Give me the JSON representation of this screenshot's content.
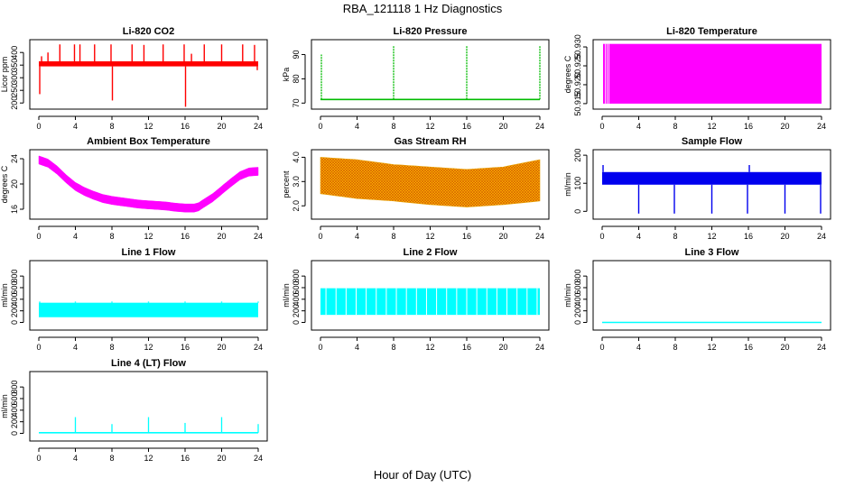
{
  "figure": {
    "title": "RBA_121118  1 Hz Diagnostics",
    "xlabel": "Hour of Day (UTC)"
  },
  "chart_data": [
    {
      "id": "co2",
      "type": "line",
      "title": "Li-820 CO2",
      "ylabel": "Licor ppm",
      "color": "#ff0000",
      "xlim": [
        0,
        24
      ],
      "xticks": [
        0,
        4,
        8,
        12,
        16,
        20,
        24
      ],
      "ylim": [
        190,
        440
      ],
      "yticks": [
        200,
        250,
        300,
        350,
        400
      ],
      "ytick_labels": [
        "200",
        "250",
        "300",
        "350",
        "400"
      ],
      "style": "band",
      "band": [
        345,
        365
      ],
      "spikes": [
        {
          "x": 0.1,
          "y": 235
        },
        {
          "x": 0.3,
          "y": 385
        },
        {
          "x": 1.0,
          "y": 400
        },
        {
          "x": 2.3,
          "y": 432
        },
        {
          "x": 3.9,
          "y": 432
        },
        {
          "x": 4.5,
          "y": 432
        },
        {
          "x": 6.1,
          "y": 432
        },
        {
          "x": 7.9,
          "y": 432
        },
        {
          "x": 8.05,
          "y": 210
        },
        {
          "x": 10.2,
          "y": 432
        },
        {
          "x": 11.5,
          "y": 430
        },
        {
          "x": 13.6,
          "y": 432
        },
        {
          "x": 15.9,
          "y": 432
        },
        {
          "x": 16.05,
          "y": 185
        },
        {
          "x": 16.7,
          "y": 395
        },
        {
          "x": 18.1,
          "y": 432
        },
        {
          "x": 20.0,
          "y": 432
        },
        {
          "x": 22.3,
          "y": 432
        },
        {
          "x": 23.6,
          "y": 430
        },
        {
          "x": 23.9,
          "y": 330
        }
      ]
    },
    {
      "id": "pressure",
      "type": "line",
      "title": "Li-820 Pressure",
      "ylabel": "kPa",
      "color": "#00bb00",
      "xlim": [
        0,
        24
      ],
      "xticks": [
        0,
        4,
        8,
        12,
        16,
        20,
        24
      ],
      "ylim": [
        69,
        95
      ],
      "yticks": [
        70,
        80,
        90
      ],
      "ytick_labels": [
        "70",
        "80",
        "90"
      ],
      "style": "baseline",
      "baseline": 71.5,
      "spikes": [
        {
          "x": 0.1,
          "y": 90
        },
        {
          "x": 8.0,
          "y": 93.5
        },
        {
          "x": 16.0,
          "y": 93.5
        },
        {
          "x": 24.0,
          "y": 93.5
        }
      ]
    },
    {
      "id": "licor_temp",
      "type": "line",
      "title": "Li-820 Temperature",
      "ylabel": "degrees C",
      "color": "#ff00ff",
      "xlim": [
        0,
        24
      ],
      "xticks": [
        0,
        4,
        8,
        12,
        16,
        20,
        24
      ],
      "ylim": [
        50.9145,
        50.9312
      ],
      "yticks": [
        50.915,
        50.92,
        50.925,
        50.93
      ],
      "ytick_labels": [
        "50.915",
        "50.920",
        "50.925",
        "50.930"
      ],
      "style": "fill",
      "band": [
        50.915,
        50.9308
      ]
    },
    {
      "id": "box_temp",
      "type": "line",
      "title": "Ambient Box Temperature",
      "ylabel": "degrees C",
      "color": "#ff00ff",
      "xlim": [
        0,
        24
      ],
      "xticks": [
        0,
        4,
        8,
        12,
        16,
        20,
        24
      ],
      "ylim": [
        15,
        25
      ],
      "yticks": [
        16,
        20,
        24
      ],
      "ytick_labels": [
        "16",
        "20",
        "24"
      ],
      "style": "thickline",
      "width": 1.3,
      "series": {
        "x": [
          0,
          1,
          2,
          3,
          4,
          5,
          6,
          7,
          8,
          9,
          10,
          11,
          12,
          13,
          14,
          15,
          16,
          17,
          17.5,
          18,
          19,
          20,
          21,
          22,
          23,
          24
        ],
        "y": [
          23.8,
          23.3,
          22.2,
          20.8,
          19.6,
          18.8,
          18.2,
          17.7,
          17.4,
          17.2,
          17.0,
          16.8,
          16.7,
          16.6,
          16.5,
          16.3,
          16.2,
          16.2,
          16.4,
          16.9,
          17.8,
          19.0,
          20.2,
          21.3,
          21.9,
          22.0
        ]
      }
    },
    {
      "id": "rh",
      "type": "line",
      "title": "Gas Stream RH",
      "ylabel": "percent",
      "color": "#e8a000",
      "xlim": [
        0,
        24
      ],
      "xticks": [
        0,
        4,
        8,
        12,
        16,
        20,
        24
      ],
      "ylim": [
        1.6,
        4.2
      ],
      "yticks": [
        2.0,
        3.0,
        4.0
      ],
      "ytick_labels": [
        "2.0",
        "3.0",
        "4.0"
      ],
      "style": "envelope",
      "hatch_color": "#cc5500",
      "upper": {
        "x": [
          0,
          4,
          8,
          12,
          16,
          20,
          24
        ],
        "y": [
          4.0,
          3.9,
          3.7,
          3.6,
          3.5,
          3.6,
          3.9
        ]
      },
      "lower": {
        "x": [
          0,
          4,
          8,
          12,
          16,
          20,
          24
        ],
        "y": [
          2.5,
          2.3,
          2.2,
          2.05,
          1.95,
          2.05,
          2.2
        ]
      }
    },
    {
      "id": "sample_flow",
      "type": "line",
      "title": "Sample Flow",
      "ylabel": "ml/min",
      "color": "#0000ee",
      "xlim": [
        0,
        24
      ],
      "xticks": [
        0,
        4,
        8,
        12,
        16,
        20,
        24
      ],
      "ylim": [
        -15,
        210
      ],
      "yticks": [
        0,
        100,
        200
      ],
      "ytick_labels": [
        "0",
        "100",
        "200"
      ],
      "style": "band",
      "band": [
        95,
        140
      ],
      "spikes": [
        {
          "x": 0.1,
          "y": 165
        },
        {
          "x": 4.0,
          "y": -8
        },
        {
          "x": 7.9,
          "y": -8
        },
        {
          "x": 12.0,
          "y": -8
        },
        {
          "x": 15.9,
          "y": -8
        },
        {
          "x": 16.1,
          "y": 165
        },
        {
          "x": 20.0,
          "y": -8
        },
        {
          "x": 23.9,
          "y": -8
        }
      ]
    },
    {
      "id": "line1",
      "type": "line",
      "title": "Line 1 Flow",
      "ylabel": "ml/min",
      "color": "#00ffff",
      "xlim": [
        0,
        24
      ],
      "xticks": [
        0,
        4,
        8,
        12,
        16,
        20,
        24
      ],
      "ylim": [
        -70,
        1020
      ],
      "yticks": [
        0,
        200,
        400,
        600,
        800
      ],
      "ytick_labels": [
        "0",
        "200",
        "400",
        "600",
        "800"
      ],
      "style": "band",
      "band": [
        90,
        340
      ],
      "spikes": [
        {
          "x": 0.1,
          "y": 360
        },
        {
          "x": 4.0,
          "y": 360
        },
        {
          "x": 8.0,
          "y": 360
        },
        {
          "x": 12.0,
          "y": 360
        },
        {
          "x": 16.0,
          "y": 360
        },
        {
          "x": 20.0,
          "y": 360
        },
        {
          "x": 24.0,
          "y": 360
        }
      ]
    },
    {
      "id": "line2",
      "type": "line",
      "title": "Line 2 Flow",
      "ylabel": "ml/min",
      "color": "#00ffff",
      "xlim": [
        0,
        24
      ],
      "xticks": [
        0,
        4,
        8,
        12,
        16,
        20,
        24
      ],
      "ylim": [
        -70,
        1020
      ],
      "yticks": [
        0,
        200,
        400,
        600,
        800
      ],
      "ytick_labels": [
        "0",
        "200",
        "400",
        "600",
        "800"
      ],
      "style": "band",
      "band": [
        130,
        590
      ],
      "spikes": []
    },
    {
      "id": "line3",
      "type": "line",
      "title": "Line 3 Flow",
      "ylabel": "ml/min",
      "color": "#00ffff",
      "xlim": [
        0,
        24
      ],
      "xticks": [
        0,
        4,
        8,
        12,
        16,
        20,
        24
      ],
      "ylim": [
        -70,
        1020
      ],
      "yticks": [
        0,
        200,
        400,
        600,
        800
      ],
      "ytick_labels": [
        "0",
        "200",
        "400",
        "600",
        "800"
      ],
      "style": "baseline",
      "baseline": 0,
      "spikes": []
    },
    {
      "id": "line4",
      "type": "line",
      "title": "Line 4 (LT) Flow",
      "ylabel": "ml/min",
      "color": "#00ffff",
      "xlim": [
        0,
        24
      ],
      "xticks": [
        0,
        4,
        8,
        12,
        16,
        20,
        24
      ],
      "ylim": [
        -70,
        1020
      ],
      "yticks": [
        0,
        200,
        400,
        600,
        800
      ],
      "ytick_labels": [
        "0",
        "200",
        "400",
        "600",
        "800"
      ],
      "style": "baseline",
      "baseline": 10,
      "spikes": [
        {
          "x": 4.0,
          "y": 280
        },
        {
          "x": 8.0,
          "y": 160
        },
        {
          "x": 12.0,
          "y": 280
        },
        {
          "x": 16.0,
          "y": 180
        },
        {
          "x": 20.0,
          "y": 280
        },
        {
          "x": 24.0,
          "y": 160
        }
      ]
    }
  ]
}
